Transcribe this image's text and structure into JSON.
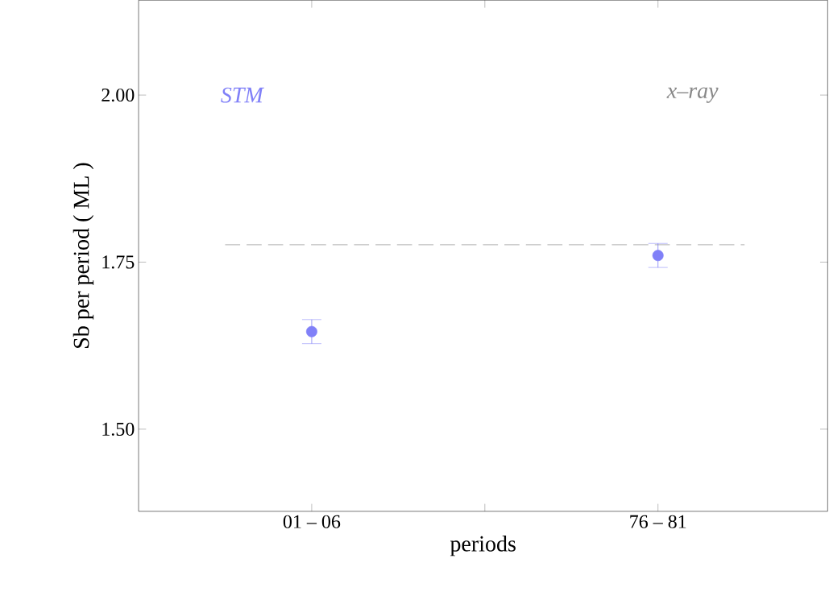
{
  "chart_data": {
    "type": "scatter",
    "xlabel": "periods",
    "ylabel": "Sb  per  period  ( ML )",
    "categories": [
      "01 – 06",
      "76 – 81"
    ],
    "series": [
      {
        "color": "#8080f8",
        "values": [
          1.646,
          1.76
        ],
        "errors": [
          0.018,
          0.018
        ]
      }
    ],
    "ylim": [
      1.377,
      2.142
    ],
    "yticks": [
      {
        "value": 1.5,
        "label": "1.50"
      },
      {
        "value": 1.75,
        "label": "1.75"
      },
      {
        "value": 2.0,
        "label": "2.00"
      }
    ],
    "ref_lines": [
      {
        "axis": "y",
        "value": 1.776,
        "color": "#999999",
        "line_style": "dashed"
      }
    ],
    "annotations": [
      "*STM*",
      "*x–ray*"
    ],
    "marker": "circle",
    "grid": false
  }
}
